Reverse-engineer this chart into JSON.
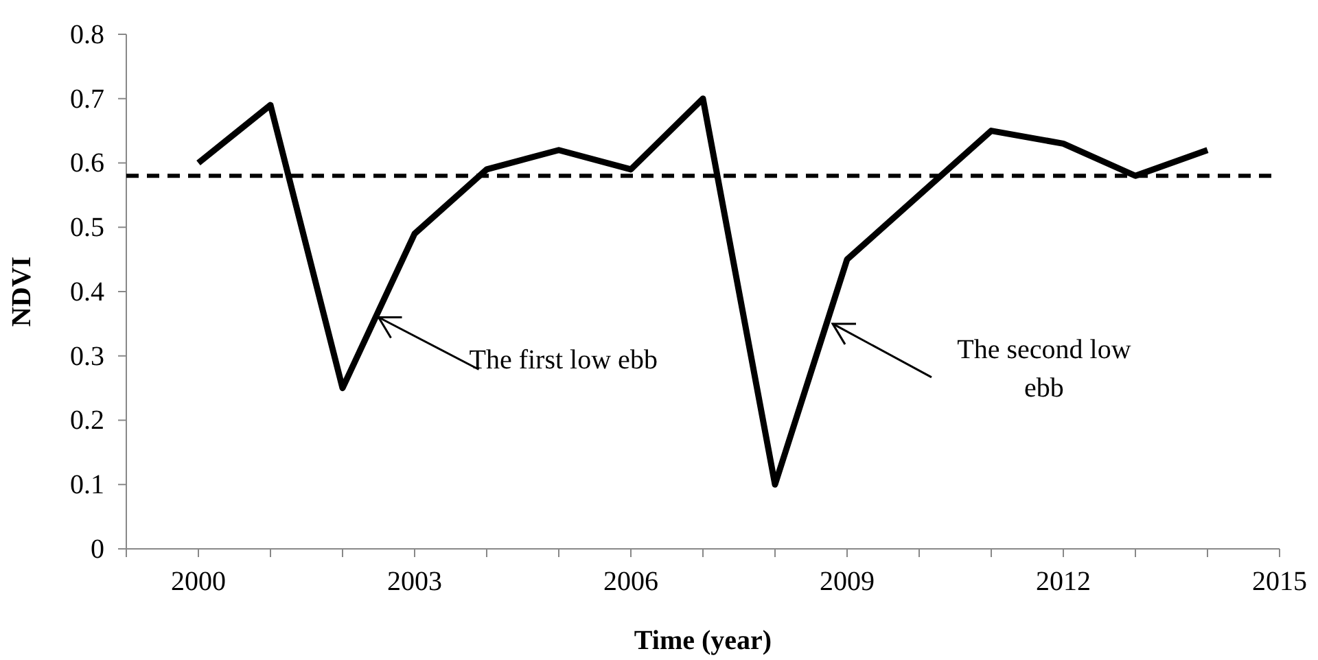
{
  "chart_data": {
    "type": "line",
    "xlabel": "Time (year)",
    "ylabel": "NDVI",
    "x": [
      2000,
      2001,
      2002,
      2003,
      2004,
      2005,
      2006,
      2007,
      2008,
      2009,
      2010,
      2011,
      2012,
      2013,
      2014
    ],
    "series": [
      {
        "color": "#000000",
        "values": [
          0.6,
          0.69,
          0.25,
          0.49,
          0.59,
          0.62,
          0.59,
          0.7,
          0.1,
          0.45,
          0.55,
          0.65,
          0.63,
          0.58,
          0.62
        ]
      }
    ],
    "xlim": [
      1999,
      2015
    ],
    "xticks": [
      {
        "value": 1999,
        "label": null
      },
      2000,
      {
        "value": 2001,
        "label": null
      },
      {
        "value": 2002,
        "label": null
      },
      2003,
      {
        "value": 2004,
        "label": null
      },
      {
        "value": 2005,
        "label": null
      },
      2006,
      {
        "value": 2007,
        "label": null
      },
      {
        "value": 2008,
        "label": null
      },
      2009,
      {
        "value": 2010,
        "label": null
      },
      {
        "value": 2011,
        "label": null
      },
      2012,
      {
        "value": 2013,
        "label": null
      },
      {
        "value": 2014,
        "label": null
      },
      2015
    ],
    "ylim": [
      0,
      0.8
    ],
    "yticks": [
      0,
      0.1,
      0.2,
      0.3,
      0.4,
      0.5,
      0.6,
      0.7,
      0.8
    ],
    "grid": false,
    "marker": "none",
    "line_style": "solid",
    "ref_lines": [
      {
        "axis": "y",
        "value": 0.58,
        "label": null,
        "color": "#000000",
        "line_style": "dashed"
      }
    ],
    "annotations": [
      {
        "text": "The first low ebb",
        "x": 2002.5,
        "y": 0.36
      },
      {
        "text": "The second low ebb",
        "x": 2008.8,
        "y": 0.35
      }
    ]
  }
}
